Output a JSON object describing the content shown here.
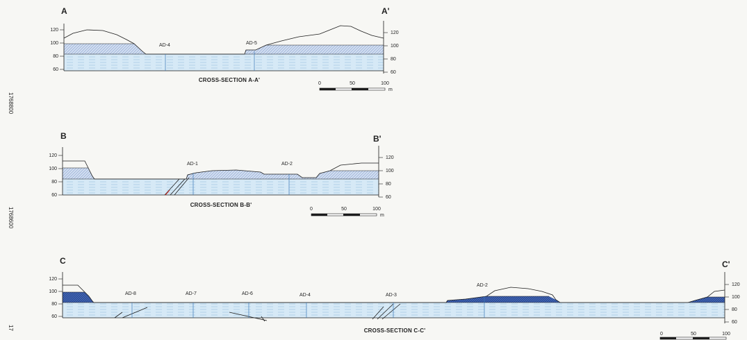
{
  "coordinates": [
    "1768800",
    "1768600",
    "17"
  ],
  "sections": [
    {
      "start_label": "A",
      "end_label": "A'",
      "caption": "CROSS-SECTION  A-A'",
      "left_ticks": [
        "120",
        "100",
        "80",
        "60"
      ],
      "right_ticks": [
        "120",
        "100",
        "80",
        "60"
      ],
      "boreholes": [
        {
          "label": "AD-4"
        },
        {
          "label": "AD-5"
        }
      ],
      "scale": {
        "labels": [
          "0",
          "50",
          "100"
        ],
        "unit": "m"
      }
    },
    {
      "start_label": "B",
      "end_label": "B'",
      "caption": "CROSS-SECTION  B-B'",
      "left_ticks": [
        "120",
        "100",
        "80",
        "60"
      ],
      "right_ticks": [
        "120",
        "100",
        "80",
        "60"
      ],
      "boreholes": [
        {
          "label": "AD-1"
        },
        {
          "label": "AD-2"
        }
      ],
      "scale": {
        "labels": [
          "0",
          "50",
          "100"
        ],
        "unit": "m"
      }
    },
    {
      "start_label": "C",
      "end_label": "C'",
      "caption": "CROSS-SECTION  C-C'",
      "left_ticks": [
        "120",
        "100",
        "80",
        "60"
      ],
      "right_ticks": [
        "120",
        "100",
        "80",
        "60"
      ],
      "boreholes": [
        {
          "label": "AD-8"
        },
        {
          "label": "AD-7"
        },
        {
          "label": "AD-6"
        },
        {
          "label": "AD-4"
        },
        {
          "label": "AD-3"
        },
        {
          "label": "AD-2"
        }
      ],
      "scale": {
        "labels": [
          "0",
          "50",
          "100"
        ],
        "unit": ""
      }
    }
  ],
  "colors": {
    "water_layer": "#d6e9f6",
    "upper_fill": "#cfdcef",
    "fill_dark": "#2e4f9c",
    "line": "#1c1c1c"
  }
}
